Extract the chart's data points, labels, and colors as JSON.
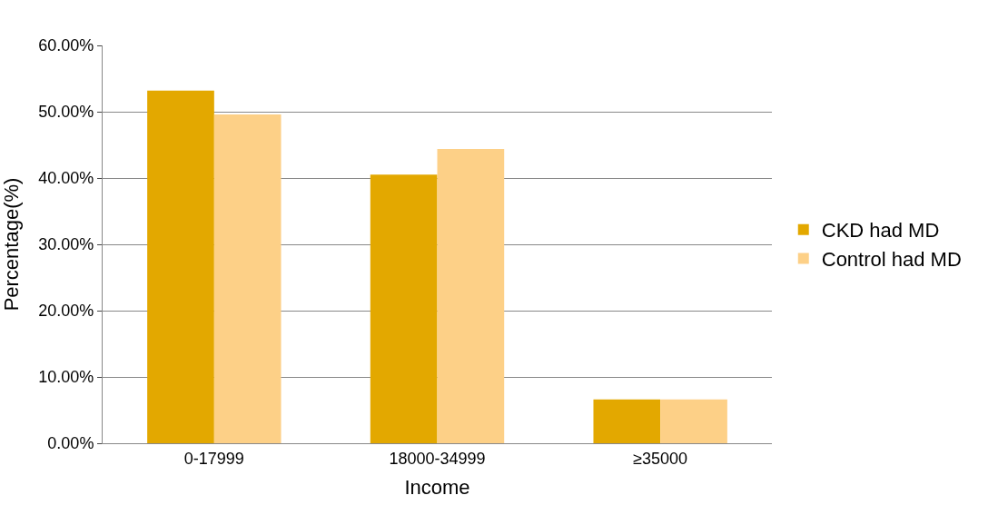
{
  "chart_data": {
    "type": "bar",
    "xlabel": "Income",
    "ylabel": "Percentage(%)",
    "categories": [
      "0-17999",
      "18000-34999",
      "≥35000"
    ],
    "series": [
      {
        "name": "CKD had MD",
        "color": "#e3a800",
        "values": [
          53.2,
          40.5,
          6.6
        ]
      },
      {
        "name": "Control had MD",
        "color": "#fdd087",
        "values": [
          49.6,
          44.4,
          6.6
        ]
      }
    ],
    "ylim": [
      0,
      60
    ],
    "yticks": [
      {
        "value": 0,
        "label": "0.00%"
      },
      {
        "value": 10,
        "label": "10.00%"
      },
      {
        "value": 20,
        "label": "20.00%"
      },
      {
        "value": 30,
        "label": "30.00%"
      },
      {
        "value": 40,
        "label": "40.00%"
      },
      {
        "value": 50,
        "label": "50.00%"
      },
      {
        "value": 60,
        "label": "60.00%"
      }
    ],
    "grid": true,
    "legend": "right"
  }
}
